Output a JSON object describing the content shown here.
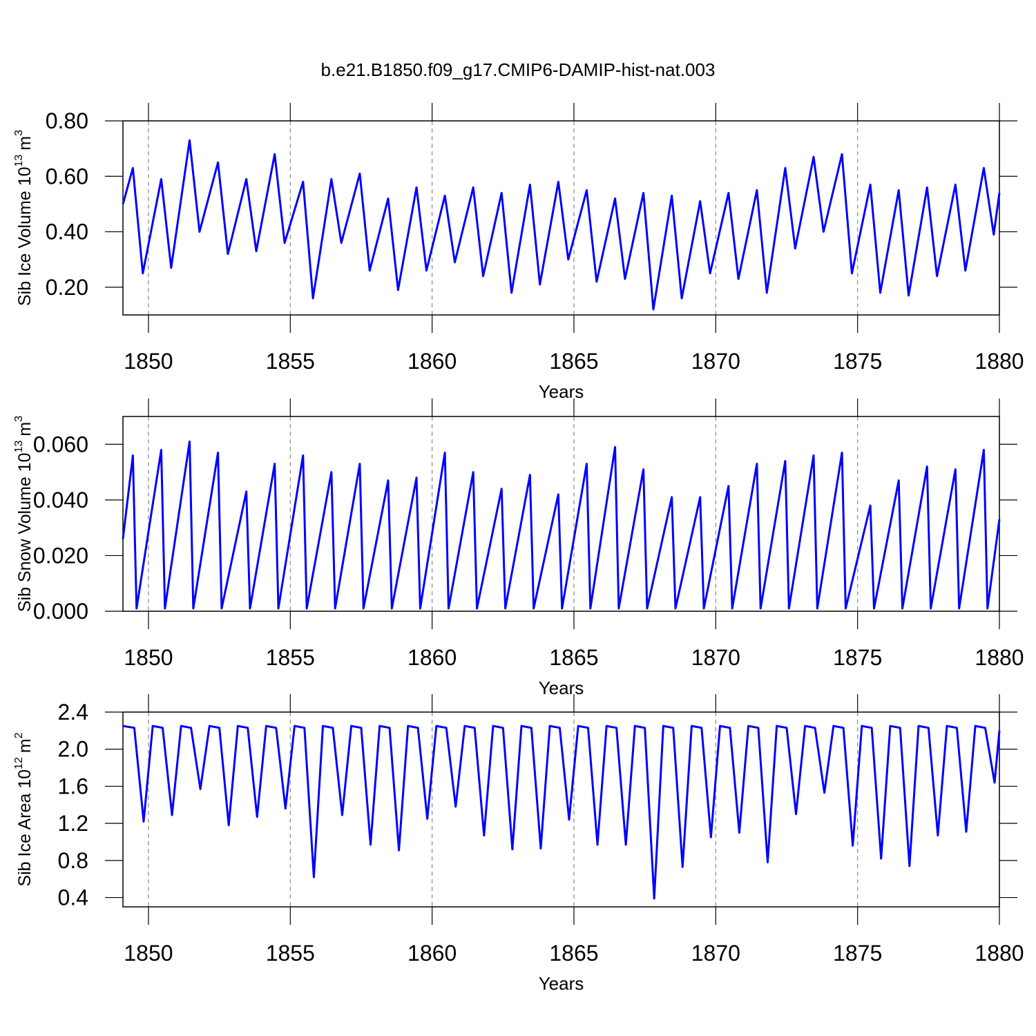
{
  "chart_data": [
    {
      "type": "line",
      "title": "b.e21.B1850.f09_g17.CMIP6-DAMIP-hist-nat.003",
      "xlabel": "Years",
      "ylabel": [
        "Sib Ice Volume 10",
        "13",
        "m",
        "3"
      ],
      "color": "#0000ff",
      "grid": "x",
      "xlim": [
        1849.1,
        1880
      ],
      "xticks": [
        1850,
        1855,
        1860,
        1865,
        1870,
        1875,
        1880
      ],
      "ylim": [
        0.1,
        0.8
      ],
      "yticks": [
        {
          "value": 0.2,
          "label": "0.20"
        },
        {
          "value": 0.4,
          "label": "0.40"
        },
        {
          "value": 0.6,
          "label": "0.60"
        },
        {
          "value": 0.8,
          "label": "0.80"
        }
      ],
      "x": [
        1849.1,
        1849.45,
        1849.8,
        1850.45,
        1850.8,
        1851.45,
        1851.8,
        1852.45,
        1852.8,
        1853.45,
        1853.8,
        1854.45,
        1854.8,
        1855.45,
        1855.8,
        1856.45,
        1856.8,
        1857.45,
        1857.8,
        1858.45,
        1858.8,
        1859.45,
        1859.8,
        1860.45,
        1860.8,
        1861.45,
        1861.8,
        1862.45,
        1862.8,
        1863.45,
        1863.8,
        1864.45,
        1864.8,
        1865.45,
        1865.8,
        1866.45,
        1866.8,
        1867.45,
        1867.8,
        1868.45,
        1868.8,
        1869.45,
        1869.8,
        1870.45,
        1870.8,
        1871.45,
        1871.8,
        1872.45,
        1872.8,
        1873.45,
        1873.8,
        1874.45,
        1874.8,
        1875.45,
        1875.8,
        1876.45,
        1876.8,
        1877.45,
        1877.8,
        1878.45,
        1878.8,
        1879.45,
        1879.8,
        1880
      ],
      "values": [
        0.5,
        0.63,
        0.25,
        0.59,
        0.27,
        0.73,
        0.4,
        0.65,
        0.32,
        0.59,
        0.33,
        0.68,
        0.36,
        0.58,
        0.16,
        0.59,
        0.36,
        0.61,
        0.26,
        0.52,
        0.19,
        0.56,
        0.26,
        0.53,
        0.29,
        0.56,
        0.24,
        0.54,
        0.18,
        0.57,
        0.21,
        0.58,
        0.3,
        0.55,
        0.22,
        0.52,
        0.23,
        0.54,
        0.12,
        0.53,
        0.16,
        0.51,
        0.25,
        0.54,
        0.23,
        0.55,
        0.18,
        0.63,
        0.34,
        0.67,
        0.4,
        0.68,
        0.25,
        0.57,
        0.18,
        0.55,
        0.17,
        0.56,
        0.24,
        0.57,
        0.26,
        0.63,
        0.39,
        0.54
      ]
    },
    {
      "type": "line",
      "xlabel": "Years",
      "ylabel": [
        "Sib Snow Volume 10",
        "13",
        "m",
        "3"
      ],
      "color": "#0000ff",
      "grid": "x",
      "xlim": [
        1849.1,
        1880
      ],
      "xticks": [
        1850,
        1855,
        1860,
        1865,
        1870,
        1875,
        1880
      ],
      "ylim": [
        0,
        0.07
      ],
      "yticks": [
        {
          "value": 0,
          "label": "0.000"
        },
        {
          "value": 0.02,
          "label": "0.020"
        },
        {
          "value": 0.04,
          "label": "0.040"
        },
        {
          "value": 0.06,
          "label": "0.060"
        }
      ],
      "x": [
        1849.1,
        1849.45,
        1849.58,
        1850.45,
        1850.58,
        1851.45,
        1851.58,
        1852.45,
        1852.58,
        1853.45,
        1853.58,
        1854.45,
        1854.58,
        1855.45,
        1855.58,
        1856.45,
        1856.58,
        1857.45,
        1857.58,
        1858.45,
        1858.58,
        1859.45,
        1859.58,
        1860.45,
        1860.58,
        1861.45,
        1861.58,
        1862.45,
        1862.58,
        1863.45,
        1863.58,
        1864.45,
        1864.58,
        1865.45,
        1865.58,
        1866.45,
        1866.58,
        1867.45,
        1867.58,
        1868.45,
        1868.58,
        1869.45,
        1869.58,
        1870.45,
        1870.58,
        1871.45,
        1871.58,
        1872.45,
        1872.58,
        1873.45,
        1873.58,
        1874.45,
        1874.58,
        1875.45,
        1875.58,
        1876.45,
        1876.58,
        1877.45,
        1877.58,
        1878.45,
        1878.58,
        1879.45,
        1879.58,
        1880
      ],
      "values": [
        0.026,
        0.056,
        0.001,
        0.058,
        0.001,
        0.061,
        0.001,
        0.057,
        0.001,
        0.043,
        0.001,
        0.053,
        0.001,
        0.056,
        0.001,
        0.05,
        0.001,
        0.053,
        0.001,
        0.047,
        0.001,
        0.048,
        0.001,
        0.057,
        0.001,
        0.05,
        0.001,
        0.044,
        0.001,
        0.049,
        0.001,
        0.042,
        0.001,
        0.053,
        0.001,
        0.059,
        0.001,
        0.051,
        0.001,
        0.041,
        0.001,
        0.041,
        0.001,
        0.045,
        0.001,
        0.053,
        0.001,
        0.054,
        0.001,
        0.056,
        0.001,
        0.057,
        0.001,
        0.038,
        0.001,
        0.047,
        0.001,
        0.052,
        0.001,
        0.051,
        0.001,
        0.058,
        0.001,
        0.033
      ]
    },
    {
      "type": "line",
      "xlabel": "Years",
      "ylabel": [
        "Sib Ice Area 10",
        "12",
        "m",
        "2"
      ],
      "color": "#0000ff",
      "grid": "x",
      "xlim": [
        1849.1,
        1880
      ],
      "xticks": [
        1850,
        1855,
        1860,
        1865,
        1870,
        1875,
        1880
      ],
      "ylim": [
        0.3,
        2.4
      ],
      "yticks": [
        0.4,
        0.8,
        1.2,
        1.6,
        {
          "value": 2.0,
          "label": "2.0"
        },
        2.4
      ],
      "x": [
        1849.1,
        1849.5,
        1849.83,
        1850.15,
        1850.5,
        1850.83,
        1851.15,
        1851.5,
        1851.83,
        1852.15,
        1852.5,
        1852.83,
        1853.15,
        1853.5,
        1853.83,
        1854.15,
        1854.5,
        1854.83,
        1855.15,
        1855.5,
        1855.83,
        1856.15,
        1856.5,
        1856.83,
        1857.15,
        1857.5,
        1857.83,
        1858.15,
        1858.5,
        1858.83,
        1859.15,
        1859.5,
        1859.83,
        1860.15,
        1860.5,
        1860.83,
        1861.15,
        1861.5,
        1861.83,
        1862.15,
        1862.5,
        1862.83,
        1863.15,
        1863.5,
        1863.83,
        1864.15,
        1864.5,
        1864.83,
        1865.15,
        1865.5,
        1865.83,
        1866.15,
        1866.5,
        1866.83,
        1867.15,
        1867.5,
        1867.83,
        1868.15,
        1868.5,
        1868.83,
        1869.15,
        1869.5,
        1869.83,
        1870.15,
        1870.5,
        1870.83,
        1871.15,
        1871.5,
        1871.83,
        1872.15,
        1872.5,
        1872.83,
        1873.15,
        1873.5,
        1873.83,
        1874.15,
        1874.5,
        1874.83,
        1875.15,
        1875.5,
        1875.83,
        1876.15,
        1876.5,
        1876.83,
        1877.15,
        1877.5,
        1877.83,
        1878.15,
        1878.5,
        1878.83,
        1879.15,
        1879.5,
        1879.83,
        1880
      ],
      "values": [
        2.25,
        2.23,
        1.22,
        2.25,
        2.23,
        1.29,
        2.25,
        2.23,
        1.57,
        2.25,
        2.23,
        1.18,
        2.25,
        2.23,
        1.27,
        2.25,
        2.23,
        1.36,
        2.25,
        2.23,
        0.62,
        2.25,
        2.23,
        1.29,
        2.25,
        2.23,
        0.97,
        2.25,
        2.23,
        0.91,
        2.25,
        2.23,
        1.25,
        2.25,
        2.23,
        1.38,
        2.25,
        2.23,
        1.07,
        2.25,
        2.23,
        0.92,
        2.25,
        2.23,
        0.93,
        2.25,
        2.23,
        1.24,
        2.25,
        2.23,
        0.97,
        2.25,
        2.23,
        0.97,
        2.25,
        2.23,
        0.39,
        2.25,
        2.23,
        0.73,
        2.25,
        2.23,
        1.05,
        2.25,
        2.23,
        1.1,
        2.25,
        2.23,
        0.78,
        2.25,
        2.23,
        1.3,
        2.25,
        2.23,
        1.53,
        2.25,
        2.23,
        0.96,
        2.25,
        2.23,
        0.82,
        2.25,
        2.23,
        0.74,
        2.25,
        2.23,
        1.07,
        2.25,
        2.23,
        1.11,
        2.25,
        2.23,
        1.64,
        2.2
      ]
    }
  ]
}
